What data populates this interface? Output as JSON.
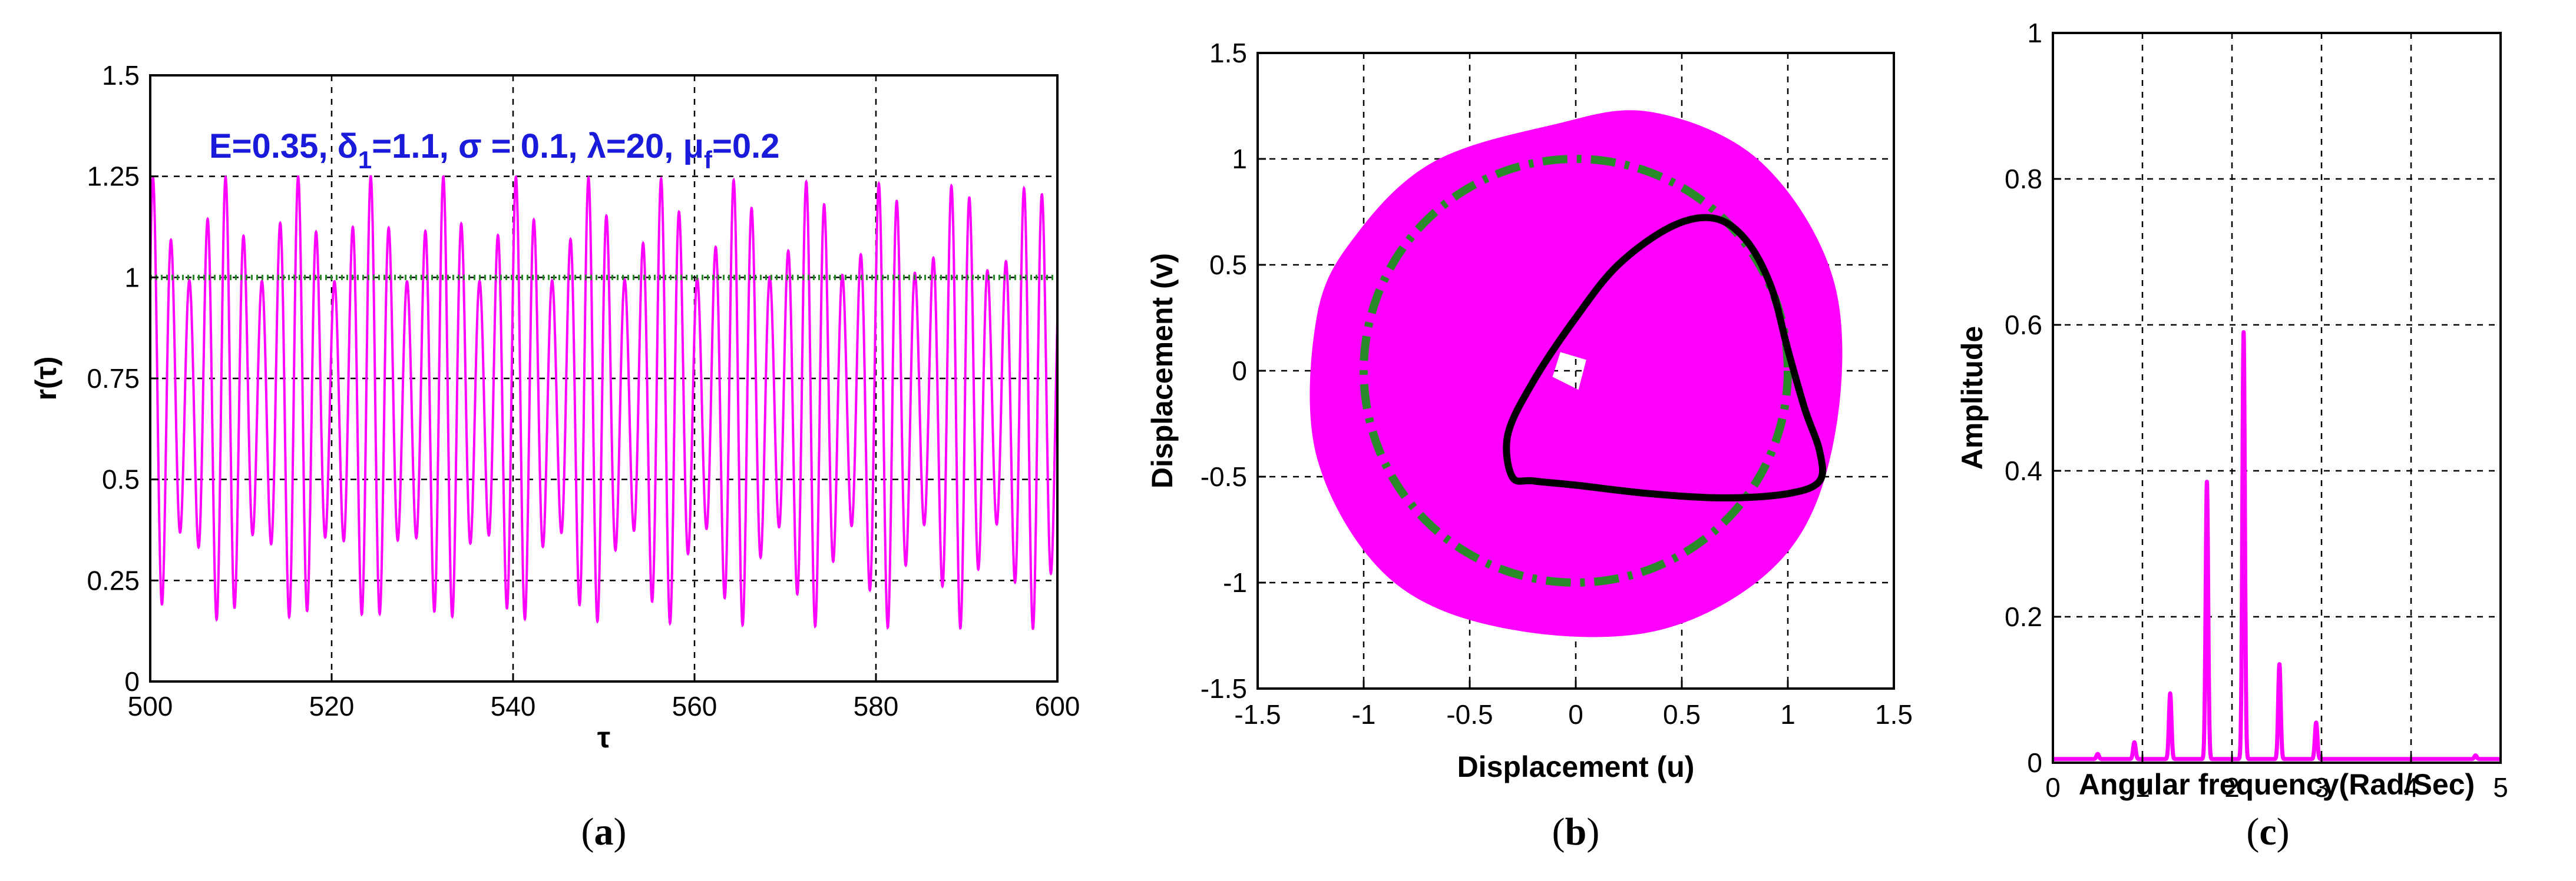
{
  "colors": {
    "magenta": "#ff00ff",
    "green": "#2a8a2a",
    "black": "#000000",
    "annotation": "#1a1adb"
  },
  "chart_data": [
    {
      "type": "line",
      "panel": "a",
      "caption": "a",
      "xlabel": "τ",
      "ylabel": "r(τ)",
      "xlim": [
        500,
        600
      ],
      "ylim": [
        0,
        1.5
      ],
      "xticks": [
        "500",
        "520",
        "540",
        "560",
        "580",
        "600"
      ],
      "yticks": [
        "0",
        "0.25",
        "0.5",
        "0.75",
        "1",
        "1.25",
        "1.5"
      ],
      "annotation": {
        "E": "E=0.35, ",
        "delta_sym": "δ",
        "delta_sub": "1",
        "delta_val": "=1.1, ",
        "sigma": "σ = 0.1, ",
        "lambda": "λ=20, ",
        "mu_sym": "μ",
        "mu_sub": "f",
        "mu_val": "=0.2"
      },
      "series": [
        {
          "name": "r(τ)",
          "color": "#ff00ff",
          "description": "oscillation between ~0.13 and ~1.25",
          "center": 0.69,
          "carrier_period": 2.0,
          "amplitude_max": 0.56,
          "amplitude_min": 0.3,
          "modulation_period": 8.1
        },
        {
          "name": "r = 1",
          "color": "#2a8a2a",
          "style": "dotted",
          "values": [
            1,
            1
          ],
          "x": [
            500,
            600
          ]
        }
      ]
    },
    {
      "type": "line",
      "panel": "b",
      "caption": "b",
      "xlabel": "Displacement (u)",
      "ylabel": "Displacement (v)",
      "xlim": [
        -1.5,
        1.5
      ],
      "ylim": [
        -1.5,
        1.5
      ],
      "xticks": [
        "-1.5",
        "-1",
        "-0.5",
        "0",
        "0.5",
        "1",
        "1.5"
      ],
      "yticks": [
        "-1.5",
        "-1",
        "-0.5",
        "0",
        "0.5",
        "1",
        "1.5"
      ],
      "series": [
        {
          "name": "trajectory fill",
          "color": "#ff00ff",
          "outer_boundary": [
            [
              -1.18,
              0.25
            ],
            [
              -1.0,
              0.62
            ],
            [
              -0.65,
              0.95
            ],
            [
              -0.1,
              1.12
            ],
            [
              0.35,
              1.18
            ],
            [
              0.85,
              0.95
            ],
            [
              1.18,
              0.4
            ],
            [
              1.18,
              -0.3
            ],
            [
              0.95,
              -0.85
            ],
            [
              0.4,
              -1.18
            ],
            [
              -0.3,
              -1.18
            ],
            [
              -0.85,
              -0.95
            ],
            [
              -1.18,
              -0.4
            ]
          ],
          "hole": [
            [
              -0.1,
              0.14
            ],
            [
              0.1,
              0.08
            ],
            [
              0.04,
              -0.15
            ],
            [
              -0.16,
              -0.05
            ]
          ]
        },
        {
          "name": "unit circle",
          "color": "#2a8a2a",
          "style": "dashdot",
          "radius": 1.0
        },
        {
          "name": "limit cycle",
          "color": "#000000",
          "points": [
            [
              -0.3,
              -0.5
            ],
            [
              -0.32,
              -0.3
            ],
            [
              -0.2,
              -0.05
            ],
            [
              0.0,
              0.25
            ],
            [
              0.2,
              0.5
            ],
            [
              0.45,
              0.68
            ],
            [
              0.65,
              0.72
            ],
            [
              0.8,
              0.62
            ],
            [
              0.92,
              0.4
            ],
            [
              1.0,
              0.1
            ],
            [
              1.08,
              -0.18
            ],
            [
              1.15,
              -0.38
            ],
            [
              1.15,
              -0.52
            ],
            [
              1.0,
              -0.58
            ],
            [
              0.7,
              -0.6
            ],
            [
              0.35,
              -0.58
            ],
            [
              0.0,
              -0.54
            ],
            [
              -0.2,
              -0.52
            ],
            [
              -0.3,
              -0.5
            ]
          ]
        }
      ]
    },
    {
      "type": "line",
      "panel": "c",
      "caption": "c",
      "xlabel": "Angular frequency(Rad/Sec)",
      "ylabel": "Amplitude",
      "xlim": [
        0,
        5
      ],
      "ylim": [
        0,
        1
      ],
      "xticks": [
        "0",
        "1",
        "2",
        "3",
        "4",
        "5"
      ],
      "yticks": [
        "0",
        "0.2",
        "0.4",
        "0.6",
        "0.8",
        "1"
      ],
      "series": [
        {
          "name": "spectrum",
          "color": "#ff00ff",
          "baseline": 0.005,
          "peaks": [
            {
              "x": 0.5,
              "y": 0.012
            },
            {
              "x": 0.91,
              "y": 0.028
            },
            {
              "x": 1.31,
              "y": 0.095
            },
            {
              "x": 1.72,
              "y": 0.385
            },
            {
              "x": 2.13,
              "y": 0.59
            },
            {
              "x": 2.53,
              "y": 0.135
            },
            {
              "x": 2.94,
              "y": 0.055
            },
            {
              "x": 4.72,
              "y": 0.01
            }
          ]
        }
      ]
    }
  ]
}
